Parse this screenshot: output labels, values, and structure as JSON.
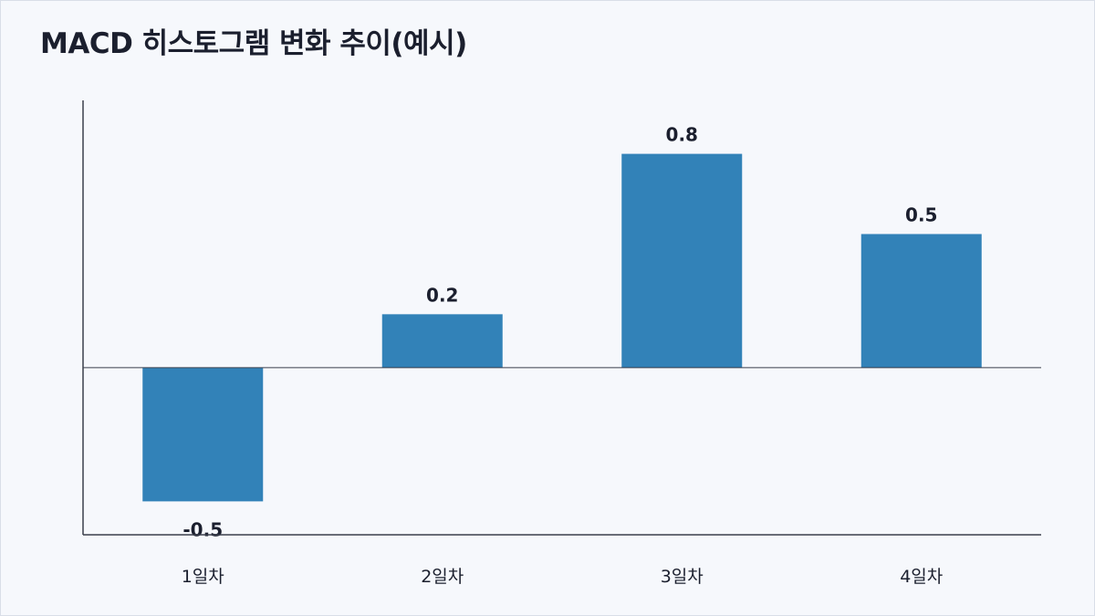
{
  "title": "MACD 히스토그램 변화 추이(예시)",
  "colors": {
    "bar": "#3282b8",
    "axis": "#3a3f4b",
    "text": "#1b1f2e"
  },
  "chart_data": {
    "type": "bar",
    "title": "MACD 히스토그램 변화 추이(예시)",
    "categories": [
      "1일차",
      "2일차",
      "3일차",
      "4일차"
    ],
    "values": [
      -0.5,
      0.2,
      0.8,
      0.5
    ],
    "data_labels": [
      "-0.5",
      "0.2",
      "0.8",
      "0.5"
    ],
    "xlabel": "",
    "ylabel": "",
    "ylim": [
      -0.625,
      1.0
    ],
    "grid": false,
    "legend": "none"
  }
}
